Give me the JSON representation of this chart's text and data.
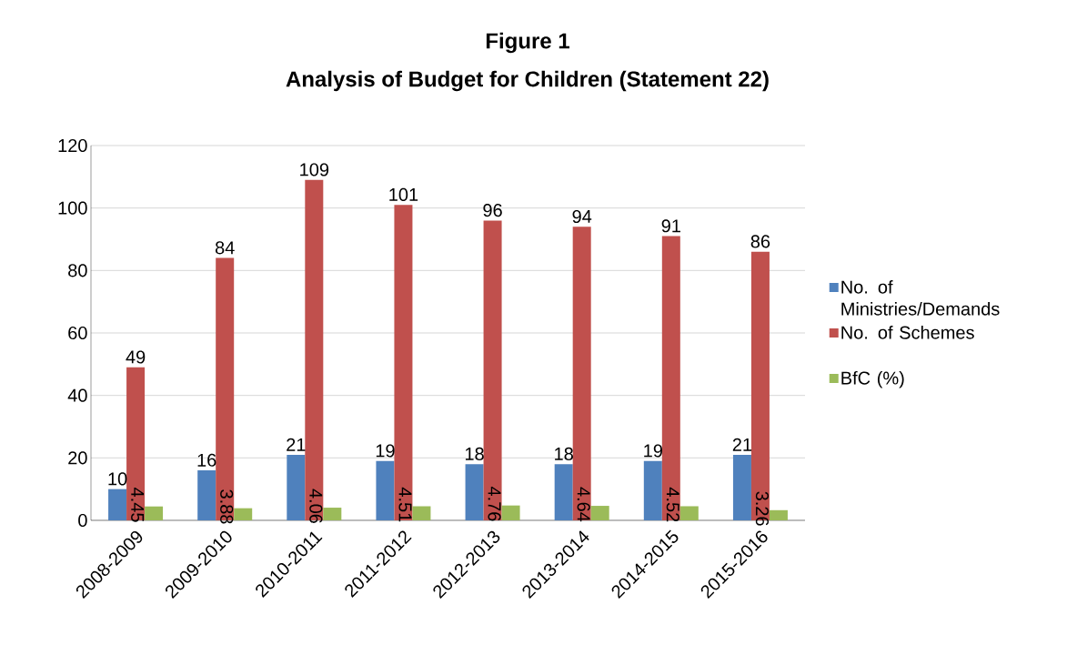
{
  "chart_data": {
    "type": "bar",
    "title": "Figure 1",
    "subtitle": "Analysis of Budget for Children (Statement 22)",
    "categories": [
      "2008-2009",
      "2009-2010",
      "2010-2011",
      "2011-2012",
      "2012-2013",
      "2013-2014",
      "2014-2015",
      "2015-2016"
    ],
    "series": [
      {
        "name": "No. of Ministries/Demands",
        "color": "#4f81bd",
        "values": [
          10,
          16,
          21,
          19,
          18,
          18,
          19,
          21
        ]
      },
      {
        "name": "No. of Schemes",
        "color": "#c0504d",
        "values": [
          49,
          84,
          109,
          101,
          96,
          94,
          91,
          86
        ]
      },
      {
        "name": "BfC (%)",
        "color": "#9bbb59",
        "values": [
          4.45,
          3.88,
          4.06,
          4.51,
          4.76,
          4.64,
          4.52,
          3.26
        ]
      }
    ],
    "ylim": [
      0,
      120
    ],
    "yticks": [
      0,
      20,
      40,
      60,
      80,
      100,
      120
    ],
    "grid": "y",
    "legend": "right",
    "data_labels": true
  }
}
